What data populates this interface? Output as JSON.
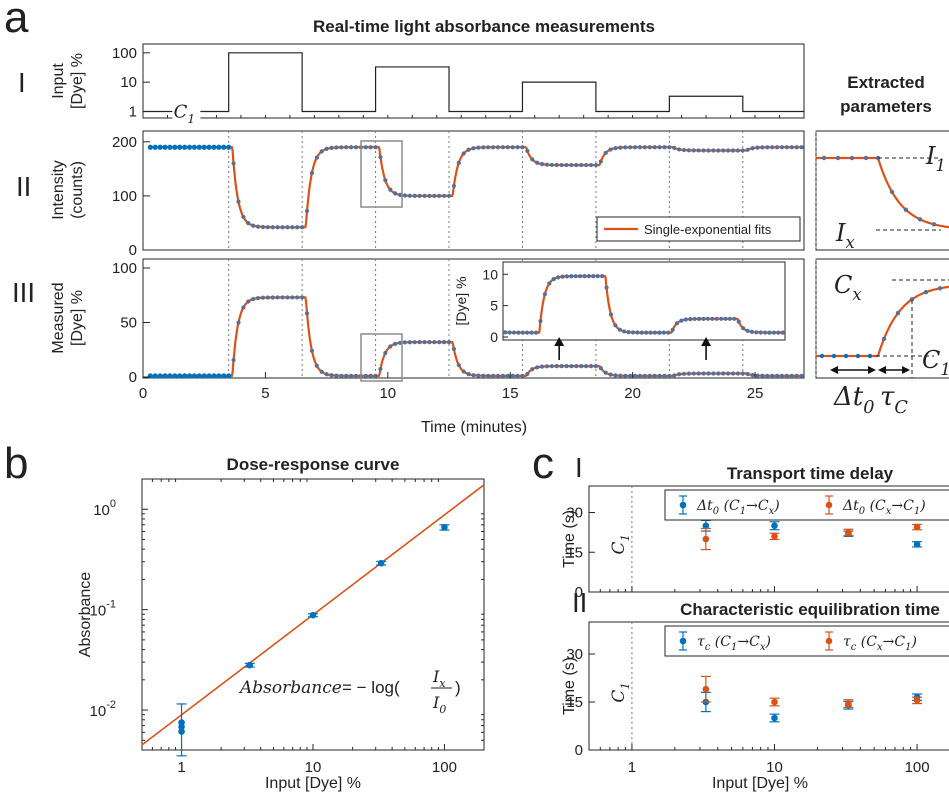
{
  "colors": {
    "blue": "#0072bd",
    "orange": "#d95319",
    "axis": "#262626",
    "highlight": "#8c8c8c"
  },
  "panel_a": {
    "label": "a",
    "title": "Real-time light absorbance measurements",
    "roman": [
      "I",
      "II",
      "III"
    ],
    "side_title": [
      "Extracted",
      "parameters"
    ],
    "c1_label": "C",
    "c1_sub": "1",
    "legend": "Single-exponential fits",
    "inset_ylabel": "[Dye] %",
    "param_labels": {
      "I1": "I",
      "I1_sub": "1",
      "Ix": "I",
      "Ix_sub": "x",
      "Cx": "C",
      "Cx_sub": "x",
      "C1": "C",
      "C1_sub": "1",
      "dt": "Δt",
      "dt_sub": "0",
      "tau": "τ",
      "tau_sub": "C"
    }
  },
  "panel_b": {
    "label": "b",
    "formula_lhs": "Absorbance",
    "formula_rhs": "= − log(",
    "frac_num": "I",
    "frac_num_sub": "x",
    "frac_den": "I",
    "frac_den_sub": "0"
  },
  "panel_c": {
    "label": "c",
    "roman": [
      "I",
      "II"
    ],
    "c1_label": "C",
    "c1_sub": "1",
    "legend_I": [
      {
        "sym": "Δt",
        "sub": "0",
        "pre": "(C",
        "p1": "1",
        "arrow": "→C",
        "p2": "x",
        "post": ")"
      },
      {
        "sym": "Δt",
        "sub": "0",
        "pre": "(C",
        "p1": "x",
        "arrow": "→C",
        "p2": "1",
        "post": ")"
      }
    ],
    "legend_II": [
      {
        "sym": "τ",
        "sub": "c",
        "pre": "(C",
        "p1": "1",
        "arrow": "→C",
        "p2": "x",
        "post": ")"
      },
      {
        "sym": "τ",
        "sub": "c",
        "pre": "(C",
        "p1": "x",
        "arrow": "→C",
        "p2": "1",
        "post": ")"
      }
    ]
  },
  "chart_data": [
    {
      "type": "line",
      "id": "a-I",
      "ylabel": "Input\n[Dye] %",
      "xlim": [
        0,
        27
      ],
      "ylim": [
        0.6,
        200
      ],
      "yscale": "log",
      "yticks": [
        1,
        10,
        100
      ],
      "input_steps": [
        {
          "x": [
            0,
            3.5
          ],
          "y": 1
        },
        {
          "x": [
            3.5,
            6.5
          ],
          "y": 100
        },
        {
          "x": [
            6.5,
            9.5
          ],
          "y": 1
        },
        {
          "x": [
            9.5,
            12.5
          ],
          "y": 33
        },
        {
          "x": [
            12.5,
            15.5
          ],
          "y": 1
        },
        {
          "x": [
            15.5,
            18.5
          ],
          "y": 10
        },
        {
          "x": [
            18.5,
            21.5
          ],
          "y": 1
        },
        {
          "x": [
            21.5,
            24.5
          ],
          "y": 3.3
        },
        {
          "x": [
            24.5,
            27
          ],
          "y": 1
        }
      ]
    },
    {
      "type": "line",
      "id": "a-II",
      "ylabel": "Intensity\n(counts)",
      "xlim": [
        0,
        27
      ],
      "ylim": [
        0,
        220
      ],
      "yticks": [
        0,
        100,
        200
      ],
      "baseline": 190,
      "levels": [
        {
          "start": 3.5,
          "end": 6.5,
          "value": 42
        },
        {
          "start": 9.5,
          "end": 12.5,
          "value": 100
        },
        {
          "start": 15.5,
          "end": 18.5,
          "value": 157
        },
        {
          "start": 21.5,
          "end": 24.5,
          "value": 184
        }
      ],
      "series": [
        {
          "name": "Single-exponential fits"
        }
      ]
    },
    {
      "type": "line",
      "id": "a-III",
      "ylabel": "Measured\n[Dye] %",
      "xlabel": "Time (minutes)",
      "xlim": [
        0,
        27
      ],
      "ylim": [
        0,
        100
      ],
      "xticks": [
        0,
        5,
        10,
        15,
        20,
        25
      ],
      "yticks": [
        0,
        50,
        100
      ],
      "baseline": 1,
      "levels": [
        {
          "start": 3.5,
          "end": 6.5,
          "value": 73
        },
        {
          "start": 9.5,
          "end": 12.5,
          "value": 32
        },
        {
          "start": 15.5,
          "end": 18.5,
          "value": 10
        },
        {
          "start": 21.5,
          "end": 24.5,
          "value": 3.2
        }
      ],
      "inset": {
        "xlim": [
          14.0,
          26.8
        ],
        "ylim": [
          0,
          11
        ],
        "yticks": [
          0,
          5,
          10
        ]
      }
    },
    {
      "type": "scatter",
      "id": "b",
      "title": "Dose-response curve",
      "xlabel": "Input [Dye] %",
      "ylabel": "Absorbance",
      "xscale": "log",
      "yscale": "log",
      "xlim": [
        0.5,
        200
      ],
      "ylim": [
        0.004,
        2
      ],
      "xticks": [
        1,
        10,
        100
      ],
      "xtick_labels": [
        "1",
        "10",
        "100"
      ],
      "yticks": [
        0.01,
        0.1,
        1
      ],
      "ytick_labels": [
        "10",
        "10",
        "10"
      ],
      "ytick_exps": [
        "-2",
        "-1",
        "0"
      ],
      "points": [
        {
          "x": 1,
          "y": 0.0075,
          "err": 0.004
        },
        {
          "x": 1,
          "y": 0.0068
        },
        {
          "x": 1,
          "y": 0.0061
        },
        {
          "x": 3.3,
          "y": 0.028,
          "err": 0.0012
        },
        {
          "x": 10,
          "y": 0.088,
          "err": 0.003
        },
        {
          "x": 33,
          "y": 0.29,
          "err": 0.012
        },
        {
          "x": 100,
          "y": 0.66,
          "err": 0.04
        }
      ],
      "fit": {
        "x": [
          0.5,
          200
        ],
        "y": [
          0.0045,
          1.75
        ]
      }
    },
    {
      "type": "scatter",
      "id": "c-I",
      "title": "Transport time delay",
      "ylabel": "Time (s)",
      "xscale": "log",
      "xlim": [
        0.5,
        200
      ],
      "ylim": [
        0,
        40
      ],
      "yticks": [
        0,
        15,
        30
      ],
      "series": [
        {
          "color": "blue",
          "x": [
            3.3,
            10,
            33,
            100
          ],
          "y": [
            25,
            25,
            22,
            18
          ],
          "err": [
            2,
            1.5,
            1,
            1
          ]
        },
        {
          "color": "orange",
          "x": [
            3.3,
            10,
            33,
            100
          ],
          "y": [
            20,
            21,
            22.5,
            24.5
          ],
          "err": [
            4,
            1.2,
            1.2,
            1
          ]
        }
      ]
    },
    {
      "type": "scatter",
      "id": "c-II",
      "title": "Characteristic equilibration time",
      "xlabel": "Input [Dye] %",
      "ylabel": "Time (s)",
      "xscale": "log",
      "xlim": [
        0.5,
        200
      ],
      "ylim": [
        0,
        40
      ],
      "xticks": [
        1,
        10,
        100
      ],
      "xtick_labels": [
        "1",
        "10",
        "100"
      ],
      "yticks": [
        0,
        15,
        30
      ],
      "series": [
        {
          "color": "blue",
          "x": [
            3.3,
            10,
            33,
            100
          ],
          "y": [
            15,
            10,
            14,
            16.5
          ],
          "err": [
            3,
            1.2,
            1.2,
            1
          ]
        },
        {
          "color": "orange",
          "x": [
            3.3,
            10,
            33,
            100
          ],
          "y": [
            19,
            15,
            14.5,
            15.5
          ],
          "err": [
            4,
            1.2,
            1.2,
            1
          ]
        }
      ]
    }
  ]
}
